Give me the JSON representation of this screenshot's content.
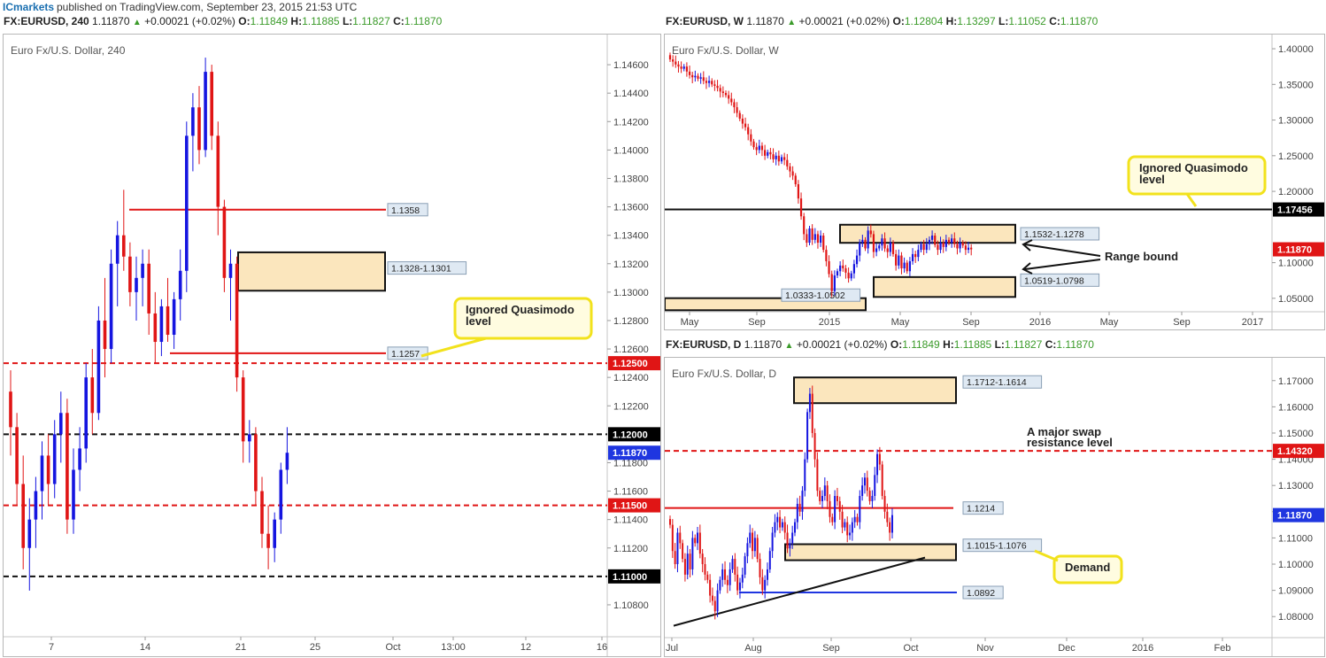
{
  "publisher": {
    "brand": "ICmarkets",
    "text": "published on TradingView.com, September 23, 2015 21:53 UTC"
  },
  "colors": {
    "bull": "#1515e0",
    "bear": "#e01515",
    "zone_fill": "#fbe6bd",
    "callout_border": "#f2e21c",
    "callout_fill": "#fffce0",
    "price_tag": "#e01515",
    "last_price_tag": "#1f36e0"
  },
  "chart_data": [
    {
      "type": "candlestick",
      "header": {
        "symbol": "FX:EURUSD, 240",
        "last": "1.11870",
        "change": "+0.00021 (+0.02%)",
        "o": "1.11849",
        "h": "1.11885",
        "l": "1.11827",
        "c": "1.11870"
      },
      "title": "Euro Fx/U.S. Dollar, 240",
      "ylim": [
        1.107,
        1.1475
      ],
      "y_ticks": [
        "1.14600",
        "1.14400",
        "1.14200",
        "1.14000",
        "1.13800",
        "1.13600",
        "1.13400",
        "1.13200",
        "1.13000",
        "1.12800",
        "1.12600",
        "1.12400",
        "1.12200",
        "1.11800",
        "1.11600",
        "1.11400",
        "1.11200",
        "1.10800"
      ],
      "x_ticks": [
        "7",
        "14",
        "21",
        "25",
        "Oct",
        "13:00",
        "12",
        "16"
      ],
      "levels": [
        {
          "price": 1.1358,
          "label": "1.1358",
          "style": "solid",
          "color": "#e01515"
        },
        {
          "price": 1.1257,
          "label": "1.1257",
          "style": "solid",
          "color": "#e01515"
        },
        {
          "price": 1.125,
          "label": "1.12500",
          "style": "dashed",
          "color": "#e01515"
        },
        {
          "price": 1.12,
          "label": "1.12000",
          "style": "dashed",
          "color": "#111111"
        },
        {
          "price": 1.115,
          "label": "1.11500",
          "style": "dashed",
          "color": "#e01515"
        },
        {
          "price": 1.11,
          "label": "1.11000",
          "style": "dashed",
          "color": "#111111"
        }
      ],
      "last_price": {
        "price": 1.1187,
        "label": "1.11870"
      },
      "zones": [
        {
          "top": 1.1328,
          "bottom": 1.1301,
          "label": "1.1328-1.1301"
        }
      ],
      "annotations": [
        {
          "text_lines": [
            "Ignored Quasimodo",
            "level"
          ]
        }
      ],
      "ohlc": [
        [
          1.123,
          1.1245,
          1.1185,
          1.1205
        ],
        [
          1.1205,
          1.1215,
          1.115,
          1.1165
        ],
        [
          1.1165,
          1.1185,
          1.1105,
          1.112
        ],
        [
          1.112,
          1.1155,
          1.109,
          1.114
        ],
        [
          1.114,
          1.117,
          1.112,
          1.116
        ],
        [
          1.116,
          1.1195,
          1.114,
          1.1185
        ],
        [
          1.1185,
          1.12,
          1.115,
          1.1165
        ],
        [
          1.1165,
          1.121,
          1.1155,
          1.12
        ],
        [
          1.12,
          1.123,
          1.118,
          1.1215
        ],
        [
          1.1215,
          1.1225,
          1.113,
          1.114
        ],
        [
          1.114,
          1.119,
          1.113,
          1.1175
        ],
        [
          1.1175,
          1.1205,
          1.116,
          1.119
        ],
        [
          1.119,
          1.125,
          1.118,
          1.124
        ],
        [
          1.124,
          1.126,
          1.12,
          1.1215
        ],
        [
          1.1215,
          1.129,
          1.121,
          1.128
        ],
        [
          1.128,
          1.131,
          1.124,
          1.126
        ],
        [
          1.126,
          1.133,
          1.125,
          1.132
        ],
        [
          1.132,
          1.135,
          1.129,
          1.134
        ],
        [
          1.134,
          1.1372,
          1.1315,
          1.1325
        ],
        [
          1.1325,
          1.1335,
          1.129,
          1.13
        ],
        [
          1.13,
          1.1325,
          1.128,
          1.131
        ],
        [
          1.131,
          1.133,
          1.129,
          1.132
        ],
        [
          1.132,
          1.133,
          1.127,
          1.1285
        ],
        [
          1.1285,
          1.13,
          1.125,
          1.1265
        ],
        [
          1.1265,
          1.1295,
          1.1255,
          1.129
        ],
        [
          1.129,
          1.131,
          1.1265,
          1.127
        ],
        [
          1.127,
          1.13,
          1.126,
          1.1295
        ],
        [
          1.1295,
          1.133,
          1.128,
          1.1315
        ],
        [
          1.1315,
          1.142,
          1.13,
          1.141
        ],
        [
          1.141,
          1.144,
          1.1385,
          1.143
        ],
        [
          1.143,
          1.1445,
          1.139,
          1.14
        ],
        [
          1.14,
          1.1465,
          1.1395,
          1.1455
        ],
        [
          1.1455,
          1.146,
          1.14,
          1.141
        ],
        [
          1.141,
          1.142,
          1.134,
          1.136
        ],
        [
          1.136,
          1.1365,
          1.13,
          1.131
        ],
        [
          1.131,
          1.133,
          1.128,
          1.132
        ],
        [
          1.132,
          1.1325,
          1.123,
          1.124
        ],
        [
          1.124,
          1.1245,
          1.118,
          1.1195
        ],
        [
          1.1195,
          1.121,
          1.118,
          1.12
        ],
        [
          1.12,
          1.1205,
          1.115,
          1.116
        ],
        [
          1.116,
          1.117,
          1.112,
          1.113
        ],
        [
          1.113,
          1.115,
          1.1105,
          1.112
        ],
        [
          1.112,
          1.1145,
          1.111,
          1.114
        ],
        [
          1.114,
          1.118,
          1.113,
          1.1175
        ],
        [
          1.1175,
          1.1205,
          1.1165,
          1.1187
        ]
      ]
    },
    {
      "type": "candlestick",
      "header": {
        "symbol": "FX:EURUSD, W",
        "last": "1.11870",
        "change": "+0.00021 (+0.02%)",
        "o": "1.12804",
        "h": "1.13297",
        "l": "1.11052",
        "c": "1.11870"
      },
      "title": "Euro Fx/U.S. Dollar, W",
      "ylim": [
        1.02,
        1.41
      ],
      "y_ticks": [
        "1.40000",
        "1.35000",
        "1.30000",
        "1.25000",
        "1.20000",
        "1.10000",
        "1.05000"
      ],
      "x_ticks": [
        "May",
        "Sep",
        "2015",
        "May",
        "Sep",
        "2016",
        "May",
        "Sep",
        "2017"
      ],
      "levels": [
        {
          "price": 1.17456,
          "label": "1.17456",
          "style": "solid",
          "color": "#111111"
        }
      ],
      "last_price": {
        "price": 1.1187,
        "label": "1.11870"
      },
      "zones": [
        {
          "top": 1.1532,
          "bottom": 1.1278,
          "label": "1.1532-1.1278"
        },
        {
          "top": 1.0798,
          "bottom": 1.0519,
          "label": "1.0519-1.0798"
        },
        {
          "top": 1.0502,
          "bottom": 1.0333,
          "label": "1.0333-1.0502"
        }
      ],
      "annotations": [
        {
          "text_lines": [
            "Ignored Quasimodo",
            "level"
          ]
        },
        {
          "text_lines": [
            "Range bound"
          ]
        }
      ],
      "close_path": [
        1.385,
        1.382,
        1.378,
        1.375,
        1.372,
        1.375,
        1.368,
        1.363,
        1.36,
        1.362,
        1.358,
        1.36,
        1.355,
        1.352,
        1.355,
        1.35,
        1.348,
        1.345,
        1.34,
        1.338,
        1.335,
        1.33,
        1.325,
        1.318,
        1.31,
        1.302,
        1.295,
        1.29,
        1.28,
        1.27,
        1.262,
        1.258,
        1.264,
        1.258,
        1.25,
        1.255,
        1.252,
        1.245,
        1.25,
        1.242,
        1.248,
        1.244,
        1.235,
        1.228,
        1.222,
        1.21,
        1.19,
        1.165,
        1.14,
        1.128,
        1.148,
        1.132,
        1.14,
        1.128,
        1.138,
        1.118,
        1.102,
        1.084,
        1.06,
        1.082,
        1.088,
        1.096,
        1.092,
        1.086,
        1.078,
        1.085,
        1.098,
        1.11,
        1.128,
        1.132,
        1.12,
        1.145,
        1.14,
        1.115,
        1.12,
        1.124,
        1.134,
        1.12,
        1.115,
        1.128,
        1.112,
        1.096,
        1.11,
        1.092,
        1.1,
        1.088,
        1.102,
        1.112,
        1.108,
        1.118,
        1.126,
        1.118,
        1.126,
        1.132,
        1.138,
        1.125,
        1.118,
        1.128,
        1.122,
        1.132,
        1.128,
        1.134,
        1.126,
        1.12,
        1.128,
        1.124,
        1.118,
        1.121,
        1.1187
      ]
    },
    {
      "type": "candlestick",
      "header": {
        "symbol": "FX:EURUSD, D",
        "last": "1.11870",
        "change": "+0.00021 (+0.02%)",
        "o": "1.11849",
        "h": "1.11885",
        "l": "1.11827",
        "c": "1.11870"
      },
      "title": "Euro Fx/U.S. Dollar, D",
      "ylim": [
        1.074,
        1.176
      ],
      "y_ticks": [
        "1.17000",
        "1.16000",
        "1.15000",
        "1.14000",
        "1.13000",
        "1.12000",
        "1.11000",
        "1.10000",
        "1.09000",
        "1.08000"
      ],
      "x_ticks": [
        "Jul",
        "Aug",
        "Sep",
        "Oct",
        "Nov",
        "Dec",
        "2016",
        "Feb"
      ],
      "levels": [
        {
          "price": 1.1432,
          "label": "1.14320",
          "style": "dashed",
          "color": "#e01515"
        },
        {
          "price": 1.1214,
          "label": "1.1214",
          "style": "solid",
          "color": "#e01515"
        },
        {
          "price": 1.0892,
          "label": "1.0892",
          "style": "solid",
          "color": "#1f36e0"
        }
      ],
      "last_price": {
        "price": 1.1187,
        "label": "1.11870"
      },
      "zones": [
        {
          "top": 1.1712,
          "bottom": 1.1614,
          "label": "1.1712-1.1614"
        },
        {
          "top": 1.1076,
          "bottom": 1.1015,
          "label": "1.1015-1.1076"
        }
      ],
      "annotations": [
        {
          "text_lines": [
            "A major swap",
            "resistance level"
          ]
        },
        {
          "text_lines": [
            "Demand"
          ]
        }
      ],
      "close_path": [
        1.115,
        1.105,
        1.1,
        1.112,
        1.108,
        1.102,
        1.096,
        1.104,
        1.098,
        1.11,
        1.108,
        1.112,
        1.104,
        1.1,
        1.096,
        1.094,
        1.088,
        1.086,
        1.082,
        1.09,
        1.094,
        1.098,
        1.094,
        1.092,
        1.098,
        1.102,
        1.096,
        1.09,
        1.093,
        1.096,
        1.103,
        1.108,
        1.112,
        1.105,
        1.11,
        1.102,
        1.095,
        1.09,
        1.094,
        1.098,
        1.105,
        1.112,
        1.116,
        1.118,
        1.114,
        1.116,
        1.112,
        1.106,
        1.108,
        1.112,
        1.116,
        1.123,
        1.12,
        1.128,
        1.14,
        1.158,
        1.165,
        1.15,
        1.14,
        1.128,
        1.124,
        1.126,
        1.13,
        1.124,
        1.118,
        1.116,
        1.126,
        1.124,
        1.12,
        1.114,
        1.116,
        1.111,
        1.112,
        1.116,
        1.118,
        1.116,
        1.126,
        1.13,
        1.133,
        1.128,
        1.124,
        1.126,
        1.134,
        1.142,
        1.138,
        1.126,
        1.12,
        1.116,
        1.112,
        1.1187
      ]
    }
  ]
}
